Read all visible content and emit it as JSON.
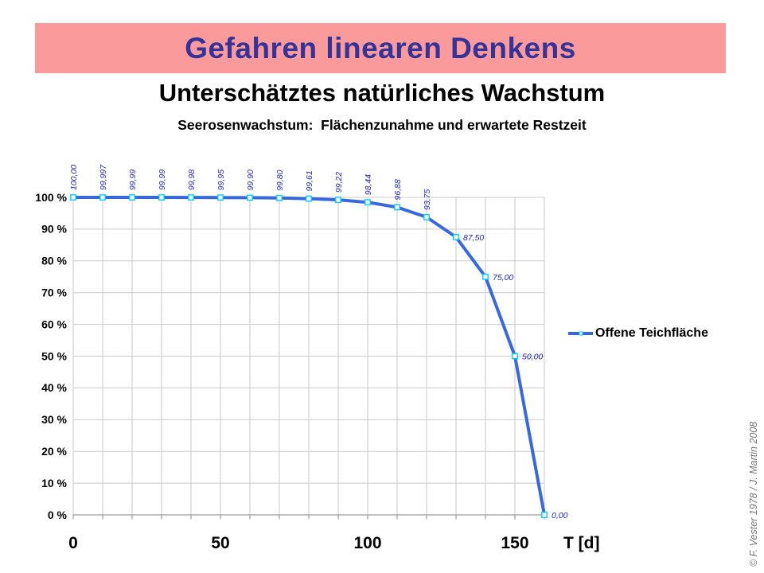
{
  "slide": {
    "banner_title": "Gefahren linearen Denkens",
    "title": "Unterschätztes natürliches Wachstum",
    "subtitle": "Seerosenwachstum:  Flächenzunahme und erwartete Restzeit",
    "credit": "© F. Vester 1978  /  J. Martin 2008"
  },
  "colors": {
    "banner_bg": "#FB9A9A",
    "banner_text": "#333399",
    "line": "#3768DF",
    "marker_border": "#00CCFF",
    "marker_fill": "#FFFFFF",
    "data_label": "#2222CC",
    "gridline": "#C9C9C9",
    "axis": "#9E9E9E",
    "credit_text": "#757575"
  },
  "chart_data": {
    "type": "line",
    "title": "Seerosenwachstum:  Flächenzunahme und erwartete Restzeit",
    "xlabel": "T [d]",
    "ylabel": "%",
    "xlim": [
      0,
      160
    ],
    "ylim": [
      0,
      100
    ],
    "grid": true,
    "x_tick_interval": 10,
    "x_labeled_ticks": [
      {
        "value": 0,
        "label": "0"
      },
      {
        "value": 50,
        "label": "50"
      },
      {
        "value": 100,
        "label": "100"
      },
      {
        "value": 150,
        "label": "150"
      }
    ],
    "y_ticks": [
      {
        "value": 100,
        "label": "100 %"
      },
      {
        "value": 90,
        "label": "90 %"
      },
      {
        "value": 80,
        "label": "80 %"
      },
      {
        "value": 70,
        "label": "70 %"
      },
      {
        "value": 60,
        "label": "60 %"
      },
      {
        "value": 50,
        "label": "50 %"
      },
      {
        "value": 40,
        "label": "40 %"
      },
      {
        "value": 30,
        "label": "30 %"
      },
      {
        "value": 20,
        "label": "20 %"
      },
      {
        "value": 10,
        "label": "10 %"
      },
      {
        "value": 0,
        "label": "0 %"
      }
    ],
    "legend": {
      "position": "right",
      "entries": [
        "Offene Teichfläche"
      ]
    },
    "series": [
      {
        "name": "Offene Teichfläche",
        "points": [
          {
            "x": 0,
            "y": 100.0,
            "label": "100,00",
            "label_orientation": "vertical"
          },
          {
            "x": 10,
            "y": 99.997,
            "label": "99,997",
            "label_orientation": "vertical"
          },
          {
            "x": 20,
            "y": 99.99,
            "label": "99,99",
            "label_orientation": "vertical"
          },
          {
            "x": 30,
            "y": 99.99,
            "label": "99,99",
            "label_orientation": "vertical"
          },
          {
            "x": 40,
            "y": 99.98,
            "label": "99,98",
            "label_orientation": "vertical"
          },
          {
            "x": 50,
            "y": 99.95,
            "label": "99,95",
            "label_orientation": "vertical"
          },
          {
            "x": 60,
            "y": 99.9,
            "label": "99,90",
            "label_orientation": "vertical"
          },
          {
            "x": 70,
            "y": 99.8,
            "label": "99,80",
            "label_orientation": "vertical"
          },
          {
            "x": 80,
            "y": 99.61,
            "label": "99,61",
            "label_orientation": "vertical"
          },
          {
            "x": 90,
            "y": 99.22,
            "label": "99,22",
            "label_orientation": "vertical"
          },
          {
            "x": 100,
            "y": 98.44,
            "label": "98,44",
            "label_orientation": "vertical"
          },
          {
            "x": 110,
            "y": 96.88,
            "label": "96,88",
            "label_orientation": "vertical"
          },
          {
            "x": 120,
            "y": 93.75,
            "label": "93,75",
            "label_orientation": "vertical"
          },
          {
            "x": 130,
            "y": 87.5,
            "label": "87,50",
            "label_orientation": "horizontal"
          },
          {
            "x": 140,
            "y": 75.0,
            "label": "75,00",
            "label_orientation": "horizontal"
          },
          {
            "x": 150,
            "y": 50.0,
            "label": "50,00",
            "label_orientation": "horizontal"
          },
          {
            "x": 160,
            "y": 0.0,
            "label": "0,00",
            "label_orientation": "horizontal"
          }
        ]
      }
    ]
  }
}
